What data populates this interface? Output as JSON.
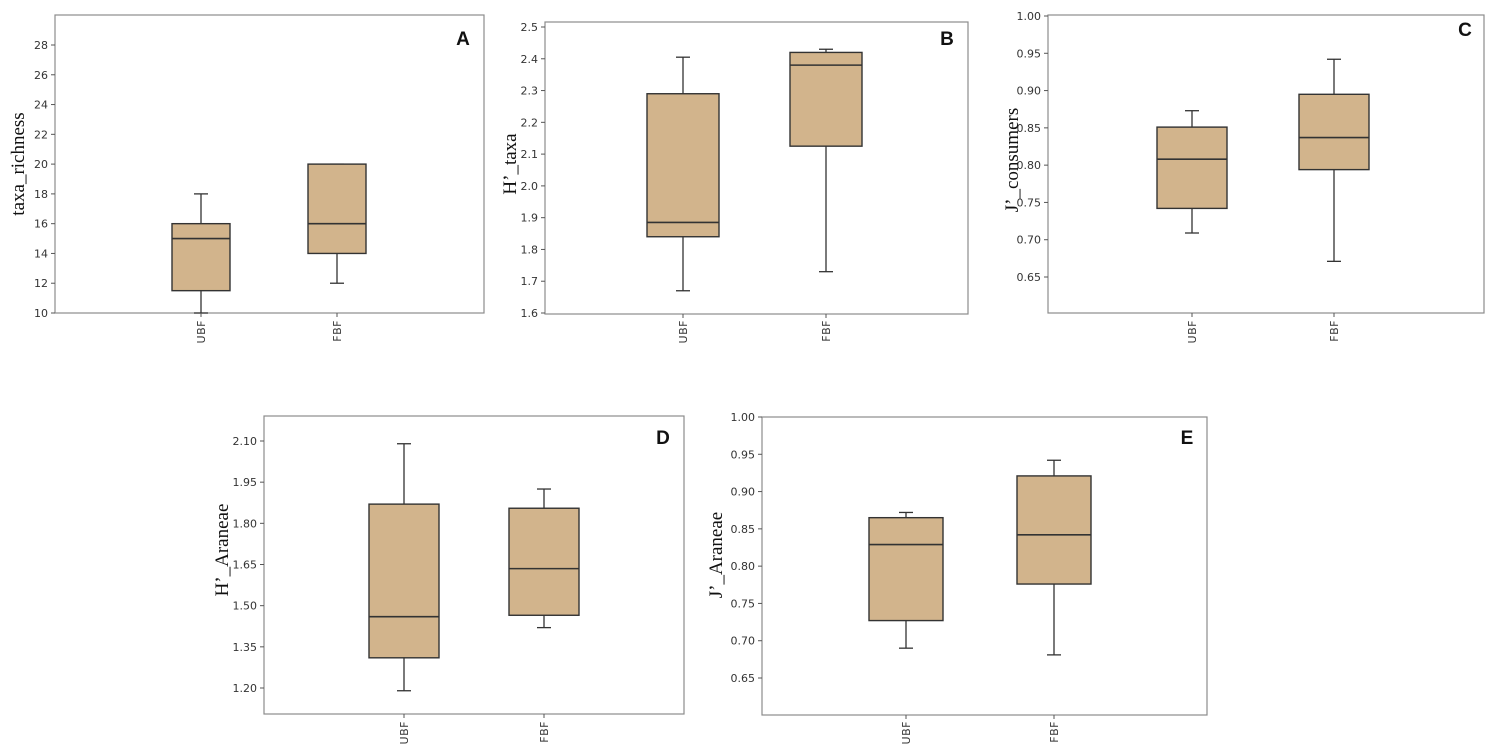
{
  "chart_data": [
    {
      "panel": "A",
      "type": "boxplot",
      "ylabel": "taxa_richness",
      "ylim": [
        10,
        30
      ],
      "yticks": [
        10,
        12,
        14,
        16,
        18,
        20,
        22,
        24,
        26,
        28
      ],
      "tick_decimals": 0,
      "categories": [
        "UBF",
        "FBF"
      ],
      "boxes": [
        {
          "min": 10,
          "q1": 11.5,
          "median": 15,
          "q3": 16,
          "max": 18
        },
        {
          "min": 12,
          "q1": 14,
          "median": 16,
          "q3": 20,
          "max": 20
        }
      ]
    },
    {
      "panel": "B",
      "type": "boxplot",
      "ylabel": "H’_taxa",
      "ylim": [
        1.6,
        2.5
      ],
      "yticks": [
        1.6,
        1.7,
        1.8,
        1.9,
        2.0,
        2.1,
        2.2,
        2.3,
        2.4,
        2.5
      ],
      "tick_decimals": 1,
      "categories": [
        "UBF",
        "FBF"
      ],
      "boxes": [
        {
          "min": 1.67,
          "q1": 1.84,
          "median": 1.885,
          "q3": 2.29,
          "max": 2.405
        },
        {
          "min": 1.73,
          "q1": 2.125,
          "median": 2.38,
          "q3": 2.42,
          "max": 2.43
        }
      ]
    },
    {
      "panel": "C",
      "type": "boxplot",
      "ylabel": "J’_consumers",
      "ylim": [
        0.6,
        1.0
      ],
      "yticks": [
        0.65,
        0.7,
        0.75,
        0.8,
        0.85,
        0.9,
        0.95,
        1.0
      ],
      "tick_decimals": 2,
      "categories": [
        "UBF",
        "FBF"
      ],
      "boxes": [
        {
          "min": 0.709,
          "q1": 0.742,
          "median": 0.808,
          "q3": 0.851,
          "max": 0.873
        },
        {
          "min": 0.671,
          "q1": 0.794,
          "median": 0.837,
          "q3": 0.895,
          "max": 0.942
        }
      ]
    },
    {
      "panel": "D",
      "type": "boxplot",
      "ylabel": "H’_Araneae",
      "ylim": [
        1.1,
        2.2
      ],
      "yticks": [
        1.2,
        1.35,
        1.5,
        1.65,
        1.8,
        1.95,
        2.1
      ],
      "tick_decimals": 2,
      "categories": [
        "UBF",
        "FBF"
      ],
      "boxes": [
        {
          "min": 1.19,
          "q1": 1.31,
          "median": 1.46,
          "q3": 1.87,
          "max": 2.09
        },
        {
          "min": 1.42,
          "q1": 1.465,
          "median": 1.635,
          "q3": 1.855,
          "max": 1.925
        }
      ]
    },
    {
      "panel": "E",
      "type": "boxplot",
      "ylabel": "J’_Araneae",
      "ylim": [
        0.6,
        1.0
      ],
      "yticks": [
        0.65,
        0.7,
        0.75,
        0.8,
        0.85,
        0.9,
        0.95,
        1.0
      ],
      "tick_decimals": 2,
      "categories": [
        "UBF",
        "FBF"
      ],
      "boxes": [
        {
          "min": 0.69,
          "q1": 0.727,
          "median": 0.829,
          "q3": 0.865,
          "max": 0.872
        },
        {
          "min": 0.681,
          "q1": 0.776,
          "median": 0.842,
          "q3": 0.921,
          "max": 0.942
        }
      ]
    }
  ],
  "colors": {
    "box_fill": "#d2b48c",
    "box_stroke": "#333333",
    "frame": "#8c8c8c"
  }
}
